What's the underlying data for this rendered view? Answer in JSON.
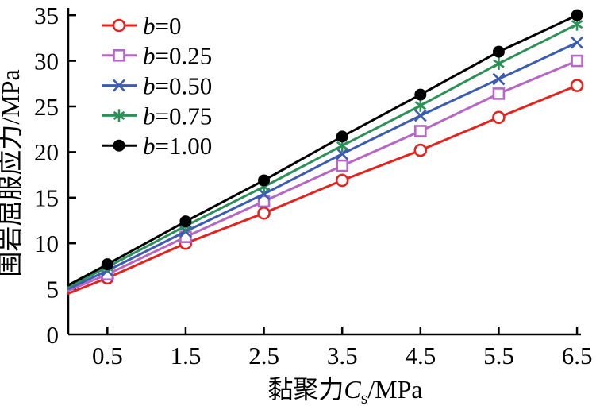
{
  "figure": {
    "background": "#ffffff",
    "text_color": "#000000"
  },
  "chart_data": {
    "type": "line",
    "title": "",
    "xlabel": {
      "prefix": "黏聚力",
      "symbol": "C",
      "subscript": "s",
      "suffix": "/MPa",
      "text": "黏聚力Cs/MPa"
    },
    "ylabel": "围岩屈服应力/MPa",
    "xlim": [
      0,
      6.55
    ],
    "ylim": [
      0,
      35.8
    ],
    "xticks": [
      0.5,
      1.5,
      2.5,
      3.5,
      4.5,
      5.5,
      6.5
    ],
    "xtick_labels": [
      "0.5",
      "1.5",
      "2.5",
      "3.5",
      "4.5",
      "5.5",
      "6.5"
    ],
    "yticks": [
      0,
      5,
      10,
      15,
      20,
      25,
      30,
      35
    ],
    "ytick_labels": [
      "0",
      "5",
      "10",
      "15",
      "20",
      "25",
      "30",
      "35"
    ],
    "grid": false,
    "legend_position": "upper-left-inside",
    "x": [
      0.5,
      1.5,
      2.5,
      3.5,
      4.5,
      5.5,
      6.5
    ],
    "series": [
      {
        "label": "b=0",
        "label_var": "b",
        "label_rest": "=0",
        "color": "#e3231e",
        "marker": "circle-open",
        "line_start_at_axis": {
          "x": 0,
          "y": 4.5
        },
        "values": [
          6.2,
          10.0,
          13.3,
          16.9,
          20.2,
          23.8,
          27.3
        ]
      },
      {
        "label": "b=0.25",
        "label_var": "b",
        "label_rest": "=0.25",
        "color": "#b666c4",
        "marker": "square-open",
        "line_start_at_axis": {
          "x": 0,
          "y": 4.8
        },
        "values": [
          6.6,
          10.7,
          14.6,
          18.5,
          22.3,
          26.4,
          30.0
        ]
      },
      {
        "label": "b=0.50",
        "label_var": "b",
        "label_rest": "=0.50",
        "color": "#3c5cb4",
        "marker": "x",
        "line_start_at_axis": {
          "x": 0,
          "y": 5.0
        },
        "values": [
          7.0,
          11.3,
          15.4,
          19.8,
          24.0,
          28.0,
          32.0
        ]
      },
      {
        "label": "b=0.75",
        "label_var": "b",
        "label_rest": "=0.75",
        "color": "#2b9156",
        "marker": "asterisk",
        "line_start_at_axis": {
          "x": 0,
          "y": 5.2
        },
        "values": [
          7.4,
          11.9,
          16.2,
          20.7,
          25.1,
          29.7,
          34.0
        ]
      },
      {
        "label": "b=1.00",
        "label_var": "b",
        "label_rest": "=1.00",
        "color": "#000000",
        "marker": "circle-filled",
        "line_start_at_axis": {
          "x": 0,
          "y": 5.4
        },
        "values": [
          7.7,
          12.4,
          16.9,
          21.7,
          26.3,
          31.0,
          35.0
        ]
      }
    ]
  }
}
